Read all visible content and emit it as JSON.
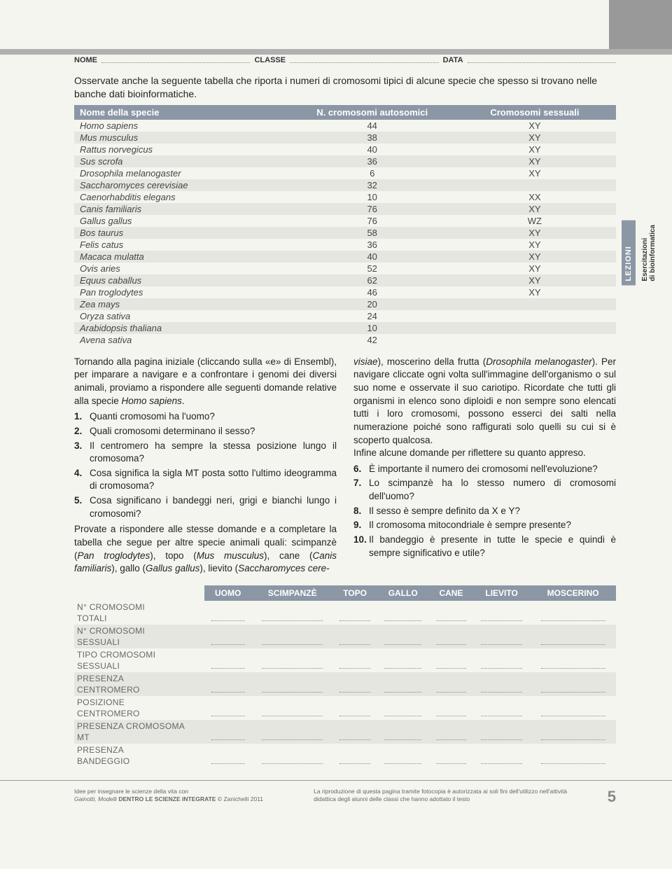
{
  "header": {
    "nome": "NOME",
    "classe": "CLASSE",
    "data": "DATA"
  },
  "intro": "Osservate anche la seguente tabella che riporta i numeri di cromosomi tipici di alcune specie che spesso si trovano nelle banche dati bioinformatiche.",
  "table1": {
    "columns": [
      "Nome della specie",
      "N. cromosomi autosomici",
      "Cromosomi sessuali"
    ],
    "rows": [
      [
        "Homo sapiens",
        "44",
        "XY"
      ],
      [
        "Mus musculus",
        "38",
        "XY"
      ],
      [
        "Rattus norvegicus",
        "40",
        "XY"
      ],
      [
        "Sus scrofa",
        "36",
        "XY"
      ],
      [
        "Drosophila melanogaster",
        "6",
        "XY"
      ],
      [
        "Saccharomyces cerevisiae",
        "32",
        ""
      ],
      [
        "Caenorhabditis elegans",
        "10",
        "XX"
      ],
      [
        "Canis familiaris",
        "76",
        "XY"
      ],
      [
        "Gallus gallus",
        "76",
        "WZ"
      ],
      [
        "Bos taurus",
        "58",
        "XY"
      ],
      [
        "Felis catus",
        "36",
        "XY"
      ],
      [
        "Macaca mulatta",
        "40",
        "XY"
      ],
      [
        "Ovis aries",
        "52",
        "XY"
      ],
      [
        "Equus caballus",
        "62",
        "XY"
      ],
      [
        "Pan troglodytes",
        "46",
        "XY"
      ],
      [
        "Zea mays",
        "20",
        ""
      ],
      [
        "Oryza sativa",
        "24",
        ""
      ],
      [
        "Arabidopsis thaliana",
        "10",
        ""
      ],
      [
        "Avena sativa",
        "42",
        ""
      ]
    ],
    "header_bg": "#8b97a5",
    "shade_bg": "#e6e6e0"
  },
  "sidebar": {
    "tab1": "LEZIONI",
    "tab2a": "Esercitazioni",
    "tab2b": "di bioinformatica"
  },
  "col1": {
    "para1_a": "Tornando alla pagina iniziale (cliccando sulla «e» di Ensembl), per imparare a navigare e a confrontare i genomi dei diversi animali, proviamo a rispondere alle seguenti domande relative alla specie ",
    "para1_b": "Homo sapiens",
    "para1_c": ".",
    "q1": "Quanti cromosomi ha l'uomo?",
    "q2": "Quali cromosomi determinano il sesso?",
    "q3": "Il centromero ha sempre la stessa posizione lungo il cromosoma?",
    "q4": "Cosa significa la sigla MT posta sotto l'ultimo ideogramma di cromosoma?",
    "q5": "Cosa significano i bandeggi neri, grigi e bianchi lungo i cromosomi?",
    "para2_a": "Provate a rispondere alle stesse domande e a completare la tabella che segue per altre specie animali quali: scimpanzè (",
    "para2_b": "Pan troglodytes",
    "para2_c": "), topo (",
    "para2_d": "Mus musculus",
    "para2_e": "), cane (",
    "para2_f": "Canis familiaris",
    "para2_g": "), gallo (",
    "para2_h": "Gallus gallus",
    "para2_i": "), lievito (",
    "para2_j": "Saccharomyces cere-"
  },
  "col2": {
    "para1_a": "visiae",
    "para1_b": "), moscerino della frutta (",
    "para1_c": "Drosophila melanogaster",
    "para1_d": "). Per navigare cliccate ogni volta sull'immagine dell'organismo o sul suo nome e osservate il suo cariotipo. Ricordate che tutti gli organismi in elenco sono diploidi e non sempre sono elencati tutti i loro cromosomi, possono esserci dei salti nella numerazione poiché sono raffigurati solo quelli su cui si è scoperto qualcosa.",
    "para2": "Infine alcune domande per riflettere su quanto appreso.",
    "q6": "È importante il numero dei cromosomi nell'evoluzione?",
    "q7": "Lo scimpanzè ha lo stesso numero di cromosomi dell'uomo?",
    "q8": "Il sesso è sempre definito da X e Y?",
    "q9": "Il cromosoma mitocondriale è sempre presente?",
    "q10": "Il bandeggio è presente in tutte le specie e quindi è sempre significativo e utile?"
  },
  "table2": {
    "columns": [
      "",
      "UOMO",
      "SCIMPANZÈ",
      "TOPO",
      "GALLO",
      "CANE",
      "LIEVITO",
      "MOSCERINO"
    ],
    "rows": [
      "N° CROMOSOMI TOTALI",
      "N° CROMOSOMI SESSUALI",
      "TIPO CROMOSOMI SESSUALI",
      "PRESENZA CENTROMERO",
      "POSIZIONE CENTROMERO",
      "PRESENZA CROMOSOMA MT",
      "PRESENZA BANDEGGIO"
    ]
  },
  "footer": {
    "left_a": "Idee per insegnare le scienze della vita con",
    "left_b": "Gainotti, Modelli",
    "left_c": " DENTRO LE SCIENZE INTEGRATE ",
    "left_d": "© Zanichelli 2011",
    "right": "La riproduzione di questa pagina tramite fotocopia è autorizzata ai soli fini dell'utilizzo nell'attività didattica degli alunni delle classi che hanno adottato il testo",
    "page": "5"
  }
}
